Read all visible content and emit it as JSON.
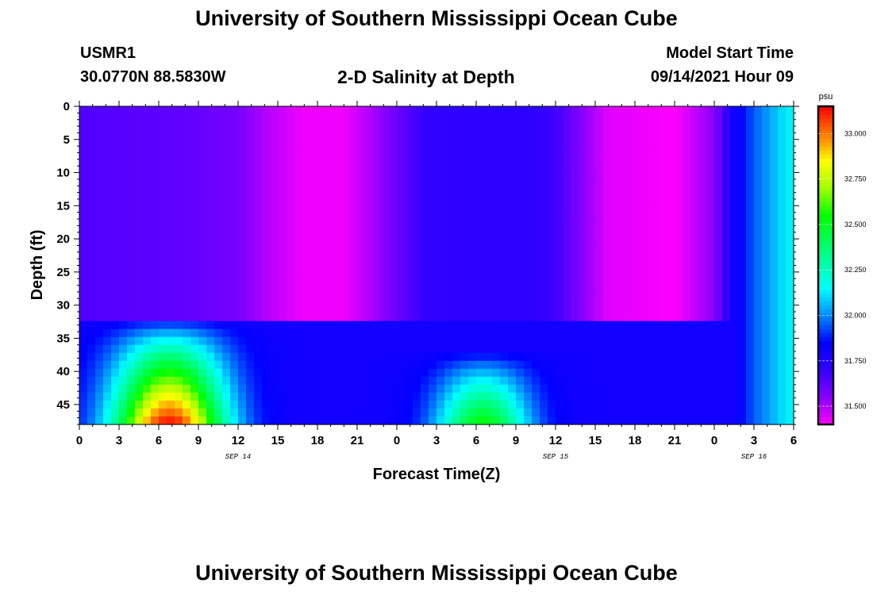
{
  "header": {
    "title": "University of Southern Mississippi Ocean Cube",
    "station_id": "USMR1",
    "station_coords": "30.0770N  88.5830W",
    "plot_title": "2-D Salinity at Depth",
    "model_start_label": "Model Start Time",
    "model_start_value": "09/14/2021 Hour 09"
  },
  "footer": {
    "title": "University of Southern Mississippi Ocean Cube"
  },
  "chart_data": {
    "type": "heatmap",
    "title": "2-D Salinity at Depth",
    "xlabel": "Forecast Time(Z)",
    "ylabel": "Depth (ft)",
    "x_ticks": [
      "0",
      "3",
      "6",
      "9",
      "12",
      "15",
      "18",
      "21",
      "0",
      "3",
      "6",
      "9",
      "12",
      "15",
      "18",
      "21",
      "0",
      "3",
      "6"
    ],
    "x_range_hours": [
      0,
      54
    ],
    "date_labels": [
      {
        "text": "SEP 14",
        "hour": 12
      },
      {
        "text": "SEP 15",
        "hour": 36
      },
      {
        "text": "SEP 16",
        "hour": 51
      }
    ],
    "y_ticks": [
      0,
      5,
      10,
      15,
      20,
      25,
      30,
      35,
      40,
      45
    ],
    "y_range": [
      0,
      48
    ],
    "y_inverted": true,
    "colorbar": {
      "unit": "psu",
      "range": [
        31.4,
        33.15
      ],
      "ticks": [
        "31.500",
        "31.750",
        "32.000",
        "32.250",
        "32.500",
        "32.750",
        "33.000"
      ],
      "ramp": [
        {
          "v": 31.4,
          "color": "#ff00ff"
        },
        {
          "v": 31.55,
          "color": "#8800ff"
        },
        {
          "v": 31.7,
          "color": "#3300ff"
        },
        {
          "v": 31.85,
          "color": "#0000ff"
        },
        {
          "v": 32.0,
          "color": "#0088ff"
        },
        {
          "v": 32.15,
          "color": "#00ffff"
        },
        {
          "v": 32.35,
          "color": "#00ff80"
        },
        {
          "v": 32.55,
          "color": "#00ff00"
        },
        {
          "v": 32.7,
          "color": "#a0ff00"
        },
        {
          "v": 32.85,
          "color": "#ffff00"
        },
        {
          "v": 32.95,
          "color": "#ffa000"
        },
        {
          "v": 33.05,
          "color": "#ff5000"
        },
        {
          "v": 33.15,
          "color": "#ff0000"
        }
      ]
    },
    "surface_salinity_by_hour": [
      {
        "hour": 0,
        "value": 31.65
      },
      {
        "hour": 8,
        "value": 31.62
      },
      {
        "hour": 12,
        "value": 31.58
      },
      {
        "hour": 14,
        "value": 31.5
      },
      {
        "hour": 17,
        "value": 31.42
      },
      {
        "hour": 20,
        "value": 31.42
      },
      {
        "hour": 22,
        "value": 31.5
      },
      {
        "hour": 24,
        "value": 31.6
      },
      {
        "hour": 26,
        "value": 31.7
      },
      {
        "hour": 30,
        "value": 31.72
      },
      {
        "hour": 34,
        "value": 31.72
      },
      {
        "hour": 36,
        "value": 31.68
      },
      {
        "hour": 38,
        "value": 31.55
      },
      {
        "hour": 40,
        "value": 31.44
      },
      {
        "hour": 45,
        "value": 31.4
      },
      {
        "hour": 48,
        "value": 31.55
      },
      {
        "hour": 49.5,
        "value": 31.8
      },
      {
        "hour": 50,
        "value": 31.85
      },
      {
        "hour": 51,
        "value": 31.95
      },
      {
        "hour": 52,
        "value": 32.02
      },
      {
        "hour": 53,
        "value": 32.1
      },
      {
        "hour": 54,
        "value": 32.15
      }
    ],
    "bottom_plumes": [
      {
        "center_hour": 6.8,
        "width_hours": 4.2,
        "peak_value": 33.15,
        "top_depth": 32,
        "bottom_depth": 48
      },
      {
        "center_hour": 30.5,
        "width_hours": 3.5,
        "peak_value": 32.55,
        "top_depth": 37,
        "bottom_depth": 48
      }
    ]
  }
}
